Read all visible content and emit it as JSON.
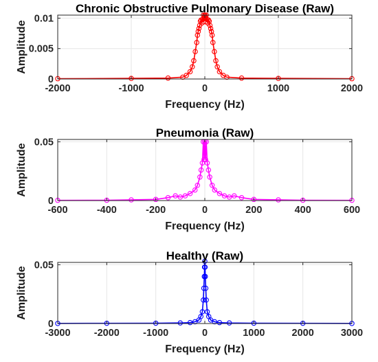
{
  "chart_data": [
    {
      "type": "line",
      "title": "Chronic Obstructive Pulmonary Disease (Raw)",
      "xlabel": "Frequency (Hz)",
      "ylabel": "Amplitude",
      "xlim": [
        -2000,
        2000
      ],
      "ylim": [
        0,
        0.0105
      ],
      "xticks": [
        -2000,
        -1000,
        0,
        1000,
        2000
      ],
      "xtick_labels": [
        "-2000",
        "-1000",
        "0",
        "1000",
        "2000"
      ],
      "yticks": [
        0,
        0.005,
        0.01
      ],
      "ytick_labels": [
        "0",
        "0.005",
        "0.01"
      ],
      "grid": true,
      "marker": "circle",
      "series": [
        {
          "color": "#ff0000",
          "x": [
            -2000,
            -1000,
            -500,
            -300,
            -250,
            -200,
            -170,
            -150,
            -130,
            -110,
            -100,
            -90,
            -80,
            -70,
            -60,
            -50,
            -40,
            -30,
            -20,
            -15,
            -10,
            -5,
            0,
            5,
            10,
            15,
            20,
            30,
            40,
            50,
            60,
            70,
            80,
            90,
            100,
            110,
            130,
            150,
            170,
            200,
            250,
            300,
            500,
            1000,
            2000
          ],
          "y": [
            5e-05,
            0.0001,
            0.00015,
            0.0003,
            0.0006,
            0.0012,
            0.002,
            0.003,
            0.0045,
            0.006,
            0.0072,
            0.0078,
            0.0083,
            0.0088,
            0.0095,
            0.0097,
            0.0092,
            0.0098,
            0.0105,
            0.0094,
            0.0099,
            0.0104,
            0.0105,
            0.0104,
            0.0099,
            0.0094,
            0.0105,
            0.0098,
            0.0092,
            0.0097,
            0.0095,
            0.0088,
            0.0083,
            0.0078,
            0.0072,
            0.006,
            0.0045,
            0.003,
            0.002,
            0.0012,
            0.0006,
            0.0003,
            0.00015,
            0.0001,
            5e-05
          ]
        }
      ]
    },
    {
      "type": "line",
      "title": "Pneumonia (Raw)",
      "xlabel": "Frequency (Hz)",
      "ylabel": "Amplitude",
      "xlim": [
        -600,
        600
      ],
      "ylim": [
        0,
        0.052
      ],
      "xticks": [
        -600,
        -400,
        -200,
        0,
        200,
        400,
        600
      ],
      "xtick_labels": [
        "-600",
        "-400",
        "-200",
        "0",
        "200",
        "400",
        "600"
      ],
      "yticks": [
        0,
        0.05
      ],
      "ytick_labels": [
        "0",
        "0.05"
      ],
      "grid": true,
      "marker": "circle",
      "series": [
        {
          "color": "#ff00ff",
          "x": [
            -600,
            -400,
            -300,
            -200,
            -150,
            -120,
            -100,
            -80,
            -60,
            -40,
            -30,
            -20,
            -15,
            -10,
            -6,
            -3,
            0,
            3,
            6,
            10,
            15,
            20,
            30,
            40,
            60,
            80,
            100,
            120,
            150,
            200,
            300,
            400,
            600
          ],
          "y": [
            0.0002,
            0.0003,
            0.0006,
            0.001,
            0.0025,
            0.004,
            0.003,
            0.004,
            0.006,
            0.009,
            0.013,
            0.02,
            0.026,
            0.032,
            0.05,
            0.035,
            0.05,
            0.035,
            0.05,
            0.032,
            0.026,
            0.02,
            0.013,
            0.009,
            0.006,
            0.004,
            0.003,
            0.004,
            0.0025,
            0.001,
            0.0006,
            0.0003,
            0.0002
          ]
        }
      ]
    },
    {
      "type": "line",
      "title": "Healthy (Raw)",
      "xlabel": "Frequency (Hz)",
      "ylabel": "Amplitude",
      "xlim": [
        -3000,
        3000
      ],
      "ylim": [
        0,
        0.052
      ],
      "xticks": [
        -3000,
        -2000,
        -1000,
        0,
        1000,
        2000,
        3000
      ],
      "xtick_labels": [
        "-3000",
        "-2000",
        "-1000",
        "0",
        "1000",
        "2000",
        "3000"
      ],
      "yticks": [
        0,
        0.05
      ],
      "ytick_labels": [
        "0",
        "0.05"
      ],
      "grid": true,
      "marker": "circle",
      "series": [
        {
          "color": "#0000ff",
          "x": [
            -3000,
            -2000,
            -1000,
            -500,
            -300,
            -200,
            -120,
            -80,
            -50,
            -30,
            -20,
            -10,
            -5,
            0,
            5,
            10,
            20,
            30,
            50,
            80,
            120,
            200,
            300,
            500,
            1000,
            2000,
            3000
          ],
          "y": [
            0.0001,
            0.0002,
            0.0003,
            0.0005,
            0.0008,
            0.0015,
            0.003,
            0.006,
            0.01,
            0.02,
            0.03,
            0.04,
            0.048,
            0.053,
            0.048,
            0.04,
            0.03,
            0.02,
            0.01,
            0.006,
            0.003,
            0.0015,
            0.0008,
            0.0005,
            0.0003,
            0.0002,
            0.0001
          ]
        }
      ]
    }
  ]
}
